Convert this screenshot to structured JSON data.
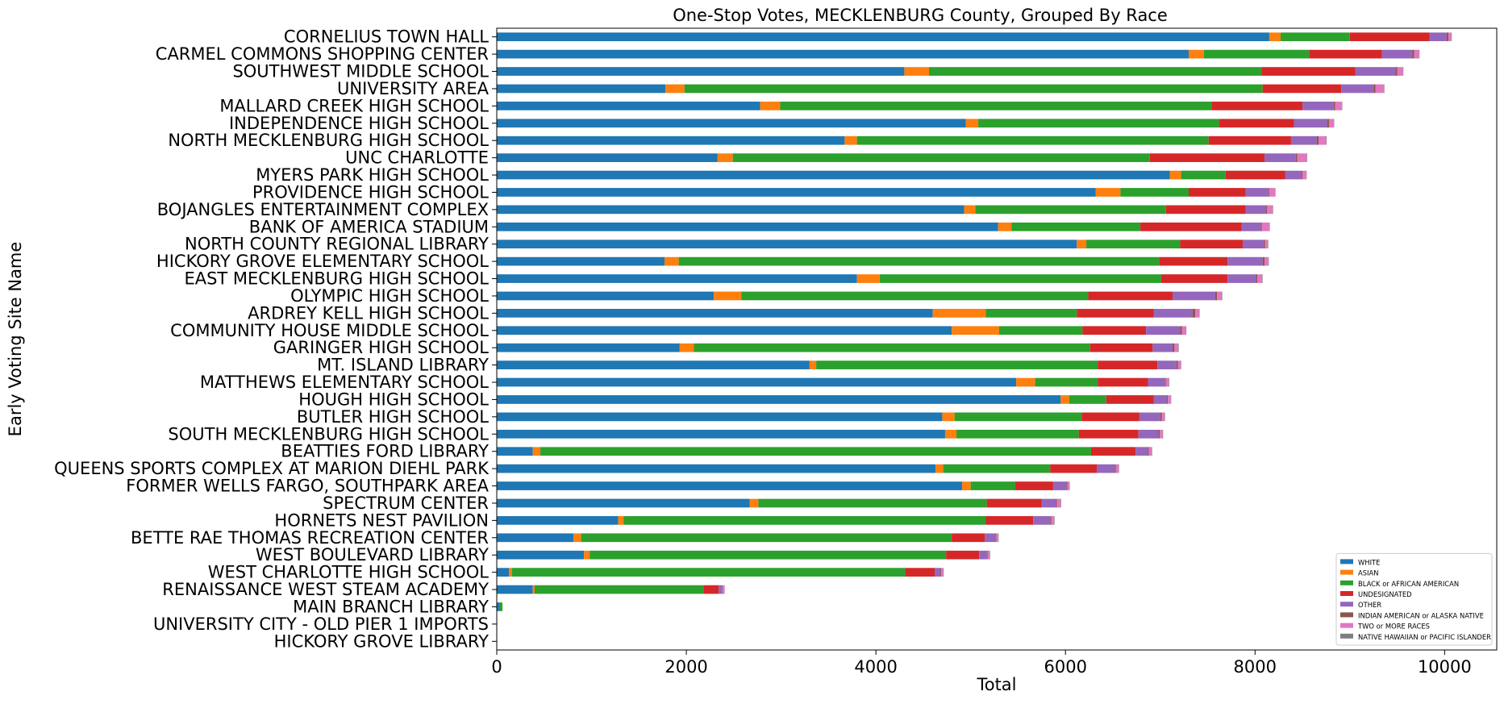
{
  "chart_data": {
    "type": "bar",
    "orientation": "horizontal",
    "stacked": true,
    "title": "One-Stop Votes, MECKLENBURG County, Grouped By Race",
    "xlabel": "Total",
    "ylabel": "Early Voting Site Name",
    "xlim": [
      0,
      10550
    ],
    "xticks": [
      0,
      2000,
      4000,
      6000,
      8000,
      10000
    ],
    "grid": false,
    "legend_position": "lower-right",
    "categories": [
      "CORNELIUS TOWN HALL",
      "CARMEL COMMONS SHOPPING CENTER",
      "SOUTHWEST MIDDLE SCHOOL",
      "UNIVERSITY AREA",
      "MALLARD CREEK HIGH SCHOOL",
      "INDEPENDENCE HIGH SCHOOL",
      "NORTH MECKLENBURG HIGH SCHOOL",
      "UNC CHARLOTTE",
      "MYERS PARK HIGH SCHOOL",
      "PROVIDENCE HIGH SCHOOL",
      "BOJANGLES ENTERTAINMENT COMPLEX",
      "BANK OF AMERICA STADIUM",
      "NORTH COUNTY REGIONAL LIBRARY",
      "HICKORY GROVE ELEMENTARY SCHOOL",
      "EAST MECKLENBURG HIGH SCHOOL",
      "OLYMPIC HIGH SCHOOL",
      "ARDREY KELL HIGH SCHOOL",
      "COMMUNITY HOUSE MIDDLE SCHOOL",
      "GARINGER HIGH SCHOOL",
      "MT. ISLAND LIBRARY",
      "MATTHEWS ELEMENTARY SCHOOL",
      "HOUGH HIGH SCHOOL",
      "BUTLER HIGH SCHOOL",
      "SOUTH MECKLENBURG HIGH SCHOOL",
      "BEATTIES FORD LIBRARY",
      "QUEENS SPORTS COMPLEX AT MARION DIEHL PARK",
      "FORMER WELLS FARGO, SOUTHPARK AREA",
      "SPECTRUM CENTER",
      "HORNETS NEST PAVILION",
      "BETTE RAE THOMAS RECREATION CENTER",
      "WEST BOULEVARD LIBRARY",
      "WEST CHARLOTTE HIGH SCHOOL",
      "RENAISSANCE WEST STEAM ACADEMY",
      "MAIN BRANCH LIBRARY",
      "UNIVERSITY CITY - OLD PIER 1 IMPORTS",
      "HICKORY GROVE LIBRARY"
    ],
    "series": [
      {
        "name": "WHITE",
        "color": "#1f77b4",
        "values": [
          8150,
          7300,
          4300,
          1780,
          2780,
          4950,
          3670,
          2330,
          7100,
          6320,
          4930,
          5290,
          6120,
          1770,
          3800,
          2290,
          4600,
          4800,
          1930,
          3300,
          5480,
          5950,
          4700,
          4730,
          380,
          4630,
          4910,
          2670,
          1280,
          810,
          920,
          130,
          380,
          30,
          0,
          0
        ]
      },
      {
        "name": "ASIAN",
        "color": "#ff7f0e",
        "values": [
          120,
          160,
          260,
          200,
          210,
          130,
          130,
          160,
          120,
          260,
          120,
          140,
          100,
          150,
          240,
          290,
          560,
          500,
          150,
          70,
          200,
          90,
          130,
          120,
          80,
          80,
          90,
          90,
          60,
          80,
          60,
          30,
          20,
          0,
          0,
          0
        ]
      },
      {
        "name": "BLACK or AFRICAN AMERICAN",
        "color": "#2ca02c",
        "values": [
          730,
          1110,
          3510,
          6100,
          4550,
          2540,
          3710,
          4400,
          470,
          720,
          2010,
          1360,
          990,
          5070,
          2970,
          3660,
          960,
          880,
          4180,
          2970,
          660,
          390,
          1340,
          1290,
          5810,
          1130,
          470,
          2410,
          3820,
          3910,
          3760,
          4150,
          1780,
          30,
          0,
          0
        ]
      },
      {
        "name": "UNDESIGNATED",
        "color": "#d62728",
        "values": [
          840,
          770,
          990,
          830,
          960,
          790,
          870,
          1210,
          630,
          600,
          840,
          1070,
          660,
          720,
          700,
          890,
          810,
          670,
          660,
          630,
          530,
          500,
          610,
          630,
          470,
          490,
          400,
          580,
          500,
          350,
          350,
          310,
          160,
          0,
          0,
          0
        ]
      },
      {
        "name": "OTHER",
        "color": "#9467bd",
        "values": [
          180,
          320,
          420,
          340,
          330,
          350,
          270,
          330,
          170,
          240,
          210,
          200,
          220,
          370,
          300,
          450,
          410,
          360,
          210,
          200,
          180,
          140,
          220,
          210,
          130,
          190,
          140,
          150,
          180,
          110,
          80,
          60,
          40,
          0,
          0,
          0
        ]
      },
      {
        "name": "INDIAN AMERICAN or ALASKA NATIVE",
        "color": "#8c564b",
        "values": [
          20,
          20,
          20,
          20,
          15,
          20,
          20,
          15,
          10,
          10,
          15,
          10,
          15,
          20,
          15,
          20,
          30,
          20,
          20,
          15,
          10,
          10,
          15,
          15,
          10,
          10,
          10,
          10,
          10,
          10,
          10,
          10,
          5,
          0,
          0,
          0
        ]
      },
      {
        "name": "TWO or MORE RACES",
        "color": "#e377c2",
        "values": [
          30,
          50,
          60,
          90,
          70,
          50,
          80,
          100,
          40,
          60,
          60,
          80,
          30,
          40,
          50,
          50,
          40,
          40,
          40,
          30,
          30,
          30,
          30,
          30,
          30,
          30,
          20,
          40,
          30,
          20,
          20,
          20,
          20,
          0,
          0,
          0
        ]
      },
      {
        "name": "NATIVE HAWAIIAN or PACIFIC ISLANDER",
        "color": "#7f7f7f",
        "values": [
          5,
          5,
          5,
          5,
          5,
          5,
          5,
          5,
          5,
          5,
          5,
          5,
          5,
          5,
          5,
          5,
          5,
          5,
          5,
          5,
          5,
          5,
          5,
          5,
          5,
          5,
          5,
          5,
          5,
          5,
          5,
          5,
          0,
          0,
          0,
          0
        ]
      }
    ]
  }
}
